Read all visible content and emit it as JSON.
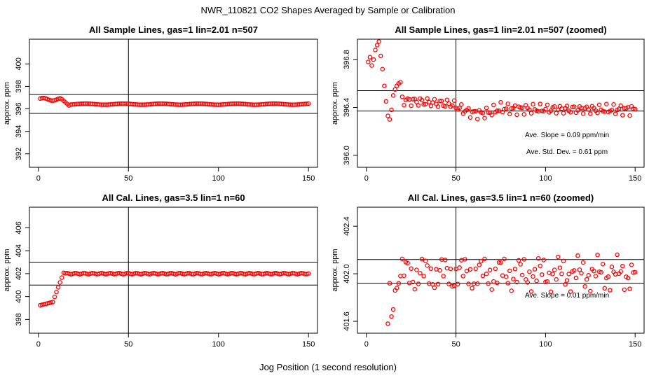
{
  "figure": {
    "title": "NWR_110821  CO2 Shapes Averaged by Sample or Calibration",
    "xlabel": "Jog Position (1 second resolution)"
  },
  "chart_data": [
    {
      "type": "scatter",
      "title": "All Sample Lines, gas=1 lin=2.01 n=507",
      "xlabel": "",
      "ylabel": "approx. ppm",
      "xlim": [
        -5,
        155
      ],
      "ylim": [
        390.8,
        402.2
      ],
      "xticks": [
        "0",
        "50",
        "100",
        "150"
      ],
      "yticks": [
        "392",
        "394",
        "396",
        "398",
        "400"
      ],
      "series": [
        {
          "name": "",
          "color": "#ff0000",
          "x": [],
          "y": []
        }
      ],
      "gen": {
        "n_start": 1,
        "n_end": 150,
        "preset": "sample_full"
      },
      "hlines": [
        397.3,
        395.6
      ],
      "vlines": [
        50
      ],
      "annotations": []
    },
    {
      "type": "scatter",
      "title": "All Sample Lines, gas=1 lin=2.01 n=507 (zoomed)",
      "xlabel": "",
      "ylabel": "approx. ppm",
      "xlim": [
        -5,
        155
      ],
      "ylim": [
        395.9,
        396.97
      ],
      "xticks": [
        "0",
        "50",
        "100",
        "150"
      ],
      "yticks": [
        "396.0",
        "396.4",
        "396.8"
      ],
      "series": [
        {
          "name": "",
          "color": "#ff0000",
          "x": [],
          "y": []
        }
      ],
      "gen": {
        "n_start": 1,
        "n_end": 150,
        "preset": "sample_zoom"
      },
      "hlines": [
        396.54,
        396.37
      ],
      "vlines": [
        50
      ],
      "annotations": [
        {
          "text": "Ave. Slope =  0.09  ppm/min",
          "x": 112,
          "y": 396.15
        },
        {
          "text": "Ave. Std. Dev. =  0.61  ppm",
          "x": 112,
          "y": 396.01
        }
      ]
    },
    {
      "type": "scatter",
      "title": "All Cal. Lines, gas=3.5 lin=1 n=60",
      "xlabel": "",
      "ylabel": "approx. ppm",
      "xlim": [
        -5,
        155
      ],
      "ylim": [
        396.8,
        407.8
      ],
      "xticks": [
        "0",
        "50",
        "100",
        "150"
      ],
      "yticks": [
        "398",
        "400",
        "402",
        "404",
        "406"
      ],
      "series": [
        {
          "name": "",
          "color": "#ff0000",
          "x": [],
          "y": []
        }
      ],
      "gen": {
        "n_start": 1,
        "n_end": 150,
        "preset": "cal_full"
      },
      "hlines": [
        403.0,
        401.0
      ],
      "vlines": [
        50
      ],
      "annotations": []
    },
    {
      "type": "scatter",
      "title": "All Cal. Lines, gas=3.5 lin=1 n=60 (zoomed)",
      "xlabel": "",
      "ylabel": "approx. ppm",
      "xlim": [
        -5,
        155
      ],
      "ylim": [
        401.5,
        402.56
      ],
      "xticks": [
        "0",
        "50",
        "100",
        "150"
      ],
      "yticks": [
        "401.6",
        "402.0",
        "402.4"
      ],
      "series": [
        {
          "name": "",
          "color": "#ff0000",
          "x": [],
          "y": []
        }
      ],
      "gen": {
        "n_start": 12,
        "n_end": 150,
        "preset": "cal_zoom"
      },
      "hlines": [
        402.12,
        401.92
      ],
      "vlines": [
        50
      ],
      "annotations": [
        {
          "text": "Ave. Slope =  0.01  ppm/min",
          "x": 112,
          "y": 401.8
        }
      ]
    }
  ]
}
